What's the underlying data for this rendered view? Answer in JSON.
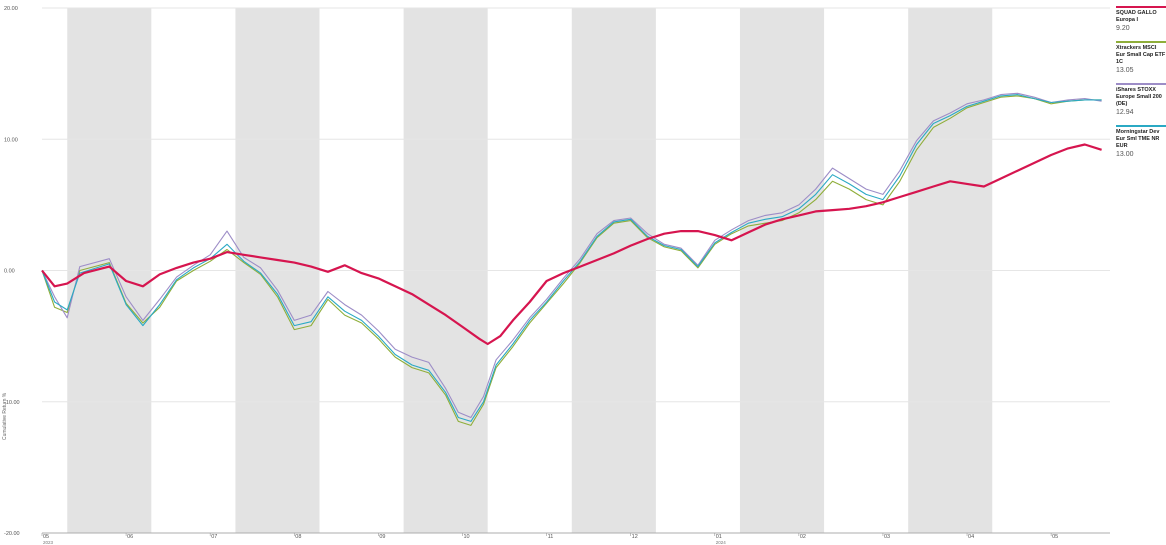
{
  "chart_data": {
    "type": "line",
    "ylabel": "Cumulative Return %",
    "ylim": [
      -20,
      20
    ],
    "y_ticks": [
      "20.00",
      "10.00",
      "0.00",
      "-10.00",
      "-20.00"
    ],
    "x_ticks": [
      {
        "label": "05",
        "sub": "2023",
        "t": 0
      },
      {
        "label": "06",
        "sub": "",
        "t": 1
      },
      {
        "label": "07",
        "sub": "",
        "t": 2
      },
      {
        "label": "08",
        "sub": "",
        "t": 3
      },
      {
        "label": "09",
        "sub": "",
        "t": 4
      },
      {
        "label": "10",
        "sub": "",
        "t": 5
      },
      {
        "label": "11",
        "sub": "",
        "t": 6
      },
      {
        "label": "12",
        "sub": "",
        "t": 7
      },
      {
        "label": "01",
        "sub": "2024",
        "t": 8
      },
      {
        "label": "02",
        "sub": "",
        "t": 9
      },
      {
        "label": "03",
        "sub": "",
        "t": 10
      },
      {
        "label": "04",
        "sub": "",
        "t": 11
      },
      {
        "label": "05",
        "sub": "",
        "t": 12
      }
    ],
    "x_range": [
      0,
      12.7
    ],
    "shaded_months": [
      [
        0.3,
        1.3
      ],
      [
        2.3,
        3.3
      ],
      [
        4.3,
        5.3
      ],
      [
        6.3,
        7.3
      ],
      [
        8.3,
        9.3
      ],
      [
        10.3,
        11.3
      ]
    ],
    "series": [
      {
        "name": "SQUAD GALLO Europa I",
        "value": "9.20",
        "color": "#d6154f",
        "points": [
          [
            0,
            0.0
          ],
          [
            0.15,
            -1.2
          ],
          [
            0.3,
            -1.0
          ],
          [
            0.5,
            -0.2
          ],
          [
            0.8,
            0.3
          ],
          [
            1.0,
            -0.8
          ],
          [
            1.2,
            -1.2
          ],
          [
            1.4,
            -0.3
          ],
          [
            1.6,
            0.2
          ],
          [
            1.8,
            0.6
          ],
          [
            2.0,
            0.9
          ],
          [
            2.2,
            1.4
          ],
          [
            2.4,
            1.2
          ],
          [
            2.6,
            1.0
          ],
          [
            2.8,
            0.8
          ],
          [
            3.0,
            0.6
          ],
          [
            3.2,
            0.3
          ],
          [
            3.4,
            -0.1
          ],
          [
            3.6,
            0.4
          ],
          [
            3.8,
            -0.2
          ],
          [
            4.0,
            -0.6
          ],
          [
            4.2,
            -1.2
          ],
          [
            4.4,
            -1.8
          ],
          [
            4.6,
            -2.6
          ],
          [
            4.8,
            -3.4
          ],
          [
            5.0,
            -4.3
          ],
          [
            5.2,
            -5.2
          ],
          [
            5.3,
            -5.6
          ],
          [
            5.45,
            -5.0
          ],
          [
            5.6,
            -3.8
          ],
          [
            5.8,
            -2.4
          ],
          [
            6.0,
            -0.8
          ],
          [
            6.2,
            -0.2
          ],
          [
            6.4,
            0.3
          ],
          [
            6.6,
            0.8
          ],
          [
            6.8,
            1.3
          ],
          [
            7.0,
            1.9
          ],
          [
            7.2,
            2.4
          ],
          [
            7.4,
            2.8
          ],
          [
            7.6,
            3.0
          ],
          [
            7.8,
            3.0
          ],
          [
            8.0,
            2.7
          ],
          [
            8.2,
            2.3
          ],
          [
            8.4,
            2.9
          ],
          [
            8.6,
            3.5
          ],
          [
            8.8,
            3.9
          ],
          [
            9.0,
            4.2
          ],
          [
            9.2,
            4.5
          ],
          [
            9.4,
            4.6
          ],
          [
            9.6,
            4.7
          ],
          [
            9.8,
            4.9
          ],
          [
            10.0,
            5.2
          ],
          [
            10.2,
            5.6
          ],
          [
            10.4,
            6.0
          ],
          [
            10.6,
            6.4
          ],
          [
            10.8,
            6.8
          ],
          [
            11.0,
            6.6
          ],
          [
            11.2,
            6.4
          ],
          [
            11.4,
            7.0
          ],
          [
            11.6,
            7.6
          ],
          [
            11.8,
            8.2
          ],
          [
            12.0,
            8.8
          ],
          [
            12.2,
            9.3
          ],
          [
            12.4,
            9.6
          ],
          [
            12.6,
            9.2
          ]
        ]
      },
      {
        "name": "Xtrackers MSCI Eur Small Cap ETF 1C",
        "value": "13.05",
        "color": "#8fae3a",
        "points": [
          [
            0,
            0.0
          ],
          [
            0.15,
            -2.8
          ],
          [
            0.3,
            -3.2
          ],
          [
            0.45,
            0.0
          ],
          [
            0.8,
            0.6
          ],
          [
            1.0,
            -2.5
          ],
          [
            1.2,
            -4.0
          ],
          [
            1.4,
            -2.8
          ],
          [
            1.6,
            -0.8
          ],
          [
            1.8,
            0.0
          ],
          [
            2.0,
            0.7
          ],
          [
            2.2,
            1.6
          ],
          [
            2.4,
            0.6
          ],
          [
            2.6,
            -0.3
          ],
          [
            2.8,
            -2.0
          ],
          [
            3.0,
            -4.5
          ],
          [
            3.2,
            -4.2
          ],
          [
            3.4,
            -2.2
          ],
          [
            3.6,
            -3.4
          ],
          [
            3.8,
            -4.0
          ],
          [
            4.0,
            -5.2
          ],
          [
            4.2,
            -6.6
          ],
          [
            4.4,
            -7.4
          ],
          [
            4.6,
            -7.8
          ],
          [
            4.8,
            -9.5
          ],
          [
            4.95,
            -11.5
          ],
          [
            5.1,
            -11.8
          ],
          [
            5.25,
            -10.2
          ],
          [
            5.4,
            -7.4
          ],
          [
            5.6,
            -5.8
          ],
          [
            5.8,
            -4.0
          ],
          [
            6.0,
            -2.5
          ],
          [
            6.2,
            -1.0
          ],
          [
            6.4,
            0.6
          ],
          [
            6.6,
            2.5
          ],
          [
            6.8,
            3.6
          ],
          [
            7.0,
            3.8
          ],
          [
            7.2,
            2.5
          ],
          [
            7.4,
            1.8
          ],
          [
            7.6,
            1.5
          ],
          [
            7.8,
            0.2
          ],
          [
            8.0,
            2.0
          ],
          [
            8.2,
            2.8
          ],
          [
            8.4,
            3.4
          ],
          [
            8.6,
            3.6
          ],
          [
            8.8,
            3.8
          ],
          [
            9.0,
            4.4
          ],
          [
            9.2,
            5.4
          ],
          [
            9.4,
            6.8
          ],
          [
            9.6,
            6.2
          ],
          [
            9.8,
            5.4
          ],
          [
            10.0,
            5.0
          ],
          [
            10.2,
            6.8
          ],
          [
            10.4,
            9.2
          ],
          [
            10.6,
            10.9
          ],
          [
            10.8,
            11.6
          ],
          [
            11.0,
            12.4
          ],
          [
            11.2,
            12.8
          ],
          [
            11.4,
            13.2
          ],
          [
            11.6,
            13.3
          ],
          [
            11.8,
            13.1
          ],
          [
            12.0,
            12.7
          ],
          [
            12.2,
            12.9
          ],
          [
            12.4,
            13.0
          ],
          [
            12.6,
            13.0
          ]
        ]
      },
      {
        "name": "iShares STOXX Europe Small 200 (DE)",
        "value": "12.94",
        "color": "#9d8dc7",
        "points": [
          [
            0,
            0.0
          ],
          [
            0.15,
            -2.0
          ],
          [
            0.3,
            -3.6
          ],
          [
            0.45,
            0.3
          ],
          [
            0.8,
            0.9
          ],
          [
            1.0,
            -2.0
          ],
          [
            1.2,
            -3.8
          ],
          [
            1.4,
            -2.2
          ],
          [
            1.6,
            -0.5
          ],
          [
            1.8,
            0.4
          ],
          [
            2.0,
            1.2
          ],
          [
            2.2,
            3.0
          ],
          [
            2.4,
            1.0
          ],
          [
            2.6,
            0.2
          ],
          [
            2.8,
            -1.5
          ],
          [
            3.0,
            -3.8
          ],
          [
            3.2,
            -3.4
          ],
          [
            3.4,
            -1.6
          ],
          [
            3.6,
            -2.6
          ],
          [
            3.8,
            -3.4
          ],
          [
            4.0,
            -4.6
          ],
          [
            4.2,
            -6.0
          ],
          [
            4.4,
            -6.6
          ],
          [
            4.6,
            -7.0
          ],
          [
            4.8,
            -9.0
          ],
          [
            4.95,
            -10.8
          ],
          [
            5.1,
            -11.2
          ],
          [
            5.25,
            -9.6
          ],
          [
            5.4,
            -6.8
          ],
          [
            5.6,
            -5.3
          ],
          [
            5.8,
            -3.6
          ],
          [
            6.0,
            -2.2
          ],
          [
            6.2,
            -0.6
          ],
          [
            6.4,
            0.9
          ],
          [
            6.6,
            2.8
          ],
          [
            6.8,
            3.8
          ],
          [
            7.0,
            4.0
          ],
          [
            7.2,
            2.8
          ],
          [
            7.4,
            2.0
          ],
          [
            7.6,
            1.7
          ],
          [
            7.8,
            0.4
          ],
          [
            8.0,
            2.3
          ],
          [
            8.2,
            3.1
          ],
          [
            8.4,
            3.8
          ],
          [
            8.6,
            4.2
          ],
          [
            8.8,
            4.4
          ],
          [
            9.0,
            5.0
          ],
          [
            9.2,
            6.2
          ],
          [
            9.4,
            7.8
          ],
          [
            9.6,
            7.0
          ],
          [
            9.8,
            6.2
          ],
          [
            10.0,
            5.8
          ],
          [
            10.2,
            7.6
          ],
          [
            10.4,
            9.9
          ],
          [
            10.6,
            11.4
          ],
          [
            10.8,
            12.0
          ],
          [
            11.0,
            12.7
          ],
          [
            11.2,
            13.0
          ],
          [
            11.4,
            13.4
          ],
          [
            11.6,
            13.5
          ],
          [
            11.8,
            13.2
          ],
          [
            12.0,
            12.8
          ],
          [
            12.2,
            13.0
          ],
          [
            12.4,
            13.1
          ],
          [
            12.6,
            12.9
          ]
        ]
      },
      {
        "name": "Morningstar Dev Eur Sml TME NR EUR",
        "value": "13.00",
        "color": "#2aa9c4",
        "points": [
          [
            0,
            0.0
          ],
          [
            0.15,
            -2.4
          ],
          [
            0.3,
            -3.0
          ],
          [
            0.45,
            -0.2
          ],
          [
            0.8,
            0.5
          ],
          [
            1.0,
            -2.6
          ],
          [
            1.2,
            -4.2
          ],
          [
            1.4,
            -2.6
          ],
          [
            1.6,
            -0.7
          ],
          [
            1.8,
            0.2
          ],
          [
            2.0,
            0.9
          ],
          [
            2.2,
            2.0
          ],
          [
            2.4,
            0.7
          ],
          [
            2.6,
            -0.2
          ],
          [
            2.8,
            -1.8
          ],
          [
            3.0,
            -4.2
          ],
          [
            3.2,
            -3.9
          ],
          [
            3.4,
            -2.0
          ],
          [
            3.6,
            -3.1
          ],
          [
            3.8,
            -3.8
          ],
          [
            4.0,
            -5.0
          ],
          [
            4.2,
            -6.4
          ],
          [
            4.4,
            -7.2
          ],
          [
            4.6,
            -7.6
          ],
          [
            4.8,
            -9.3
          ],
          [
            4.95,
            -11.2
          ],
          [
            5.1,
            -11.5
          ],
          [
            5.25,
            -10.0
          ],
          [
            5.4,
            -7.2
          ],
          [
            5.6,
            -5.6
          ],
          [
            5.8,
            -3.8
          ],
          [
            6.0,
            -2.4
          ],
          [
            6.2,
            -0.8
          ],
          [
            6.4,
            0.7
          ],
          [
            6.6,
            2.6
          ],
          [
            6.8,
            3.7
          ],
          [
            7.0,
            3.9
          ],
          [
            7.2,
            2.6
          ],
          [
            7.4,
            1.9
          ],
          [
            7.6,
            1.6
          ],
          [
            7.8,
            0.3
          ],
          [
            8.0,
            2.1
          ],
          [
            8.2,
            2.9
          ],
          [
            8.4,
            3.6
          ],
          [
            8.6,
            3.9
          ],
          [
            8.8,
            4.1
          ],
          [
            9.0,
            4.7
          ],
          [
            9.2,
            5.8
          ],
          [
            9.4,
            7.3
          ],
          [
            9.6,
            6.6
          ],
          [
            9.8,
            5.8
          ],
          [
            10.0,
            5.4
          ],
          [
            10.2,
            7.2
          ],
          [
            10.4,
            9.6
          ],
          [
            10.6,
            11.2
          ],
          [
            10.8,
            11.8
          ],
          [
            11.0,
            12.5
          ],
          [
            11.2,
            12.9
          ],
          [
            11.4,
            13.3
          ],
          [
            11.6,
            13.4
          ],
          [
            11.8,
            13.1
          ],
          [
            12.0,
            12.8
          ],
          [
            12.2,
            12.9
          ],
          [
            12.4,
            13.0
          ],
          [
            12.6,
            13.0
          ]
        ]
      }
    ]
  }
}
